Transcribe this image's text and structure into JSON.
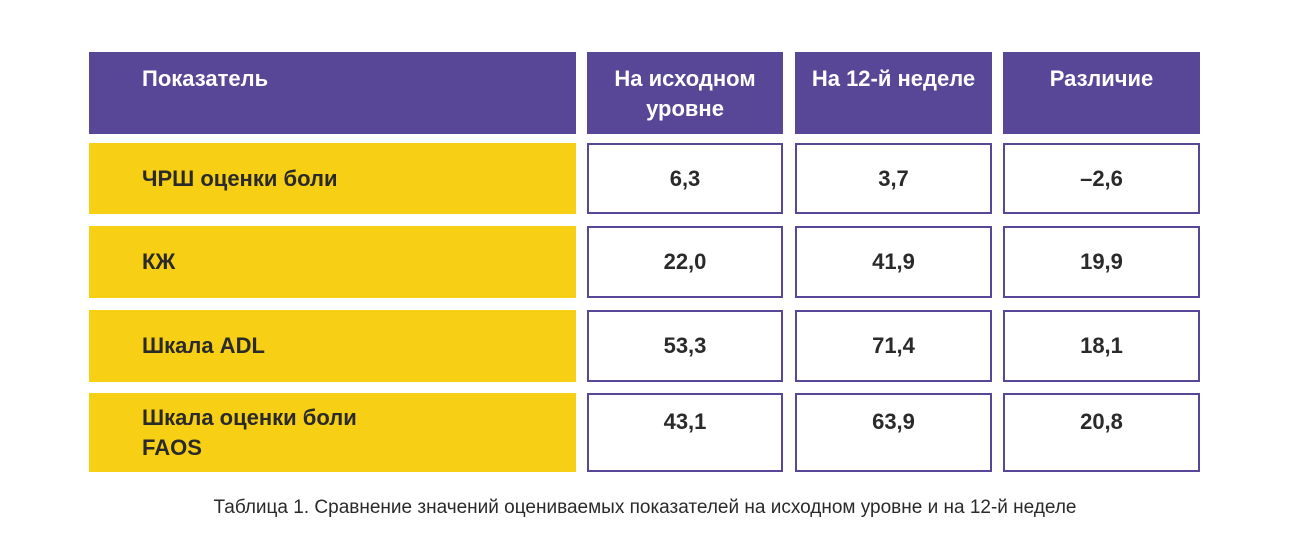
{
  "table": {
    "headers": [
      "Показатель",
      "На исходном уровне",
      "На 12-й неделе",
      "Различие"
    ],
    "rows": [
      {
        "label": "ЧРШ оценки боли",
        "baseline": "6,3",
        "week12": "3,7",
        "diff": "–2,6"
      },
      {
        "label": "КЖ",
        "baseline": "22,0",
        "week12": "41,9",
        "diff": "19,9"
      },
      {
        "label": "Шкала ADL",
        "baseline": "53,3",
        "week12": "71,4",
        "diff": "18,1"
      },
      {
        "label": "Шкала оценки боли FAOS",
        "baseline": "43,1",
        "week12": "63,9",
        "diff": "20,8"
      }
    ]
  },
  "colors": {
    "header": "#574796",
    "label": "#f7cf14"
  },
  "caption": "Таблица 1. Сравнение значений оцениваемых показателей на исходном уровне и на 12-й неделе"
}
